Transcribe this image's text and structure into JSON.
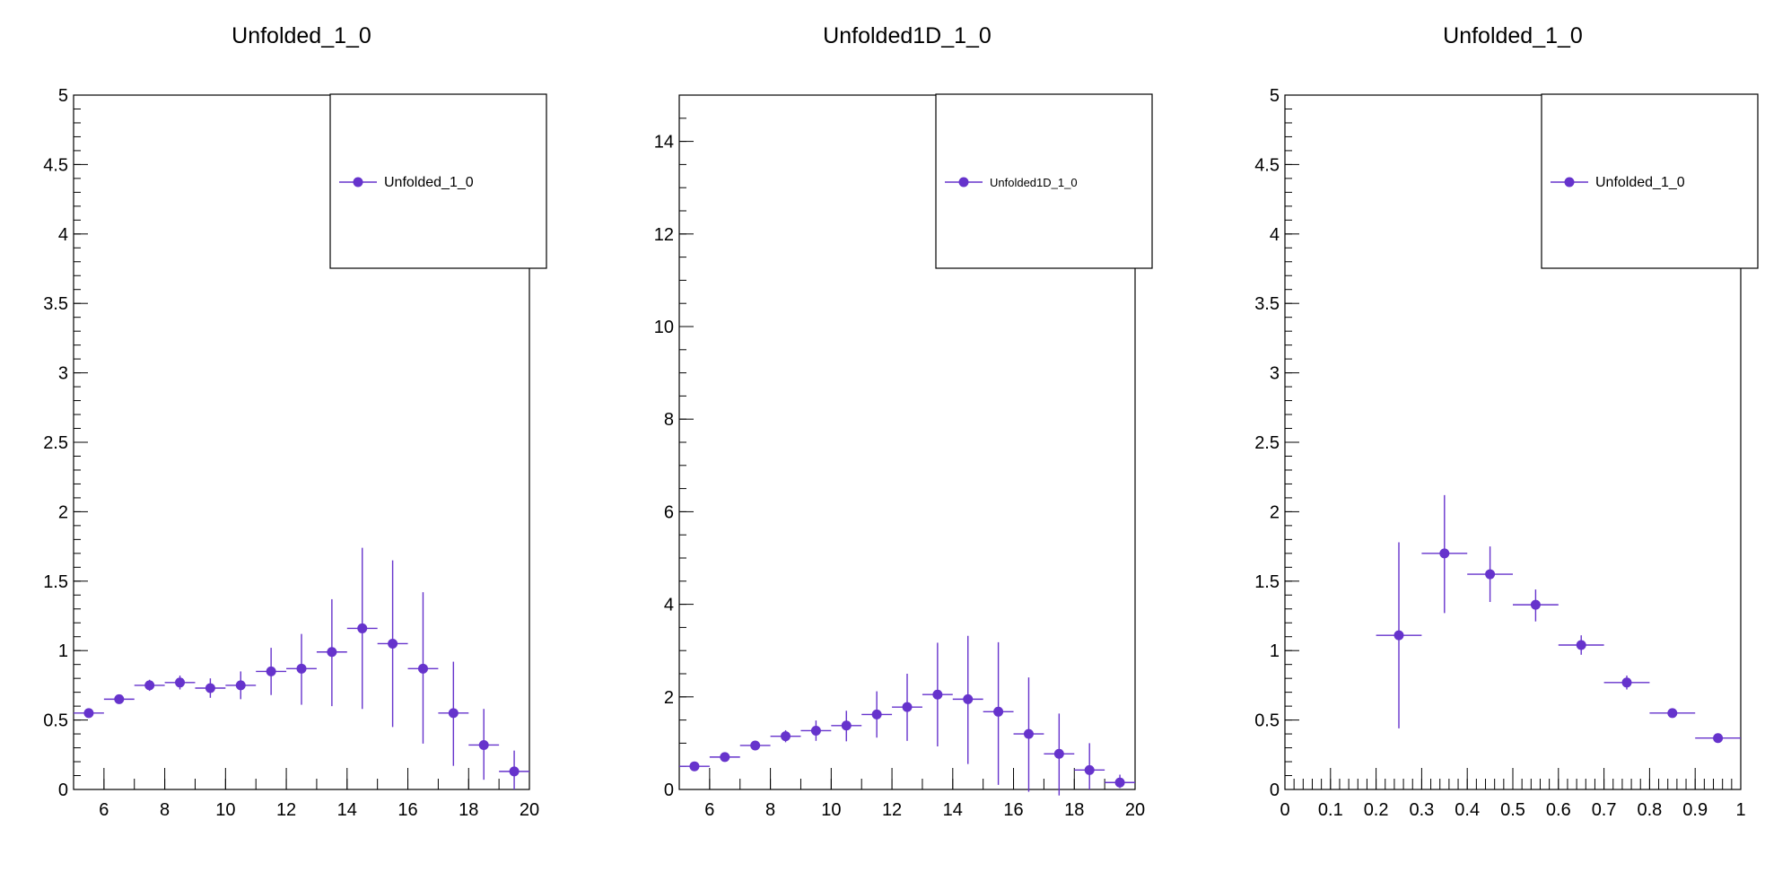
{
  "theme": {
    "marker_color": "#6633cc",
    "frame_color": "#000000",
    "background": "#ffffff"
  },
  "chart_data": [
    {
      "type": "scatter",
      "title": "Unfolded_1_0",
      "xlabel": "",
      "ylabel": "",
      "xlim": [
        5,
        20
      ],
      "ylim": [
        0,
        5
      ],
      "x_ticks": [
        6,
        8,
        10,
        12,
        14,
        16,
        18,
        20
      ],
      "y_ticks": [
        0,
        0.5,
        1,
        1.5,
        2,
        2.5,
        3,
        3.5,
        4,
        4.5,
        5
      ],
      "y_tick_labels": [
        "0",
        "0.5",
        "1",
        "1.5",
        "2",
        "2.5",
        "3",
        "3.5",
        "4",
        "4.5",
        "5"
      ],
      "x_minor_step": 1,
      "y_minor_step": 0.1,
      "grid": false,
      "legend_position": "top-right",
      "series": [
        {
          "name": "Unfolded_1_0",
          "x": [
            5.5,
            6.5,
            7.5,
            8.5,
            9.5,
            10.5,
            11.5,
            12.5,
            13.5,
            14.5,
            15.5,
            16.5,
            17.5,
            18.5,
            19.5
          ],
          "y": [
            0.55,
            0.65,
            0.75,
            0.77,
            0.73,
            0.75,
            0.85,
            0.87,
            0.99,
            1.16,
            1.05,
            0.87,
            0.55,
            0.32,
            0.13
          ],
          "x_err": [
            0.5,
            0.5,
            0.5,
            0.5,
            0.5,
            0.5,
            0.5,
            0.5,
            0.5,
            0.5,
            0.5,
            0.5,
            0.5,
            0.5,
            0.5
          ],
          "y_err_low": [
            0.02,
            0.02,
            0.04,
            0.05,
            0.07,
            0.1,
            0.17,
            0.26,
            0.39,
            0.58,
            0.6,
            0.54,
            0.38,
            0.25,
            0.13
          ],
          "y_err_high": [
            0.02,
            0.02,
            0.04,
            0.05,
            0.07,
            0.1,
            0.17,
            0.25,
            0.38,
            0.58,
            0.6,
            0.55,
            0.37,
            0.26,
            0.15
          ]
        }
      ]
    },
    {
      "type": "scatter",
      "title": "Unfolded1D_1_0",
      "xlabel": "",
      "ylabel": "",
      "xlim": [
        5,
        20
      ],
      "ylim": [
        0,
        15
      ],
      "x_ticks": [
        6,
        8,
        10,
        12,
        14,
        16,
        18,
        20
      ],
      "y_ticks": [
        0,
        2,
        4,
        6,
        8,
        10,
        12,
        14
      ],
      "y_tick_labels": [
        "0",
        "2",
        "4",
        "6",
        "8",
        "10",
        "12",
        "14"
      ],
      "x_minor_step": 1,
      "y_minor_step": 0.5,
      "grid": false,
      "legend_position": "top-right",
      "series": [
        {
          "name": "Unfolded1D_1_0",
          "x": [
            5.5,
            6.5,
            7.5,
            8.5,
            9.5,
            10.5,
            11.5,
            12.5,
            13.5,
            14.5,
            15.5,
            16.5,
            17.5,
            18.5,
            19.5
          ],
          "y": [
            0.5,
            0.7,
            0.95,
            1.15,
            1.27,
            1.38,
            1.62,
            1.78,
            2.05,
            1.95,
            1.68,
            1.2,
            0.77,
            0.42,
            0.15
          ],
          "x_err": [
            0.5,
            0.5,
            0.5,
            0.5,
            0.5,
            0.5,
            0.5,
            0.5,
            0.5,
            0.5,
            0.5,
            0.5,
            0.5,
            0.5,
            0.5
          ],
          "y_err_low": [
            0.04,
            0.05,
            0.07,
            0.13,
            0.22,
            0.34,
            0.5,
            0.73,
            1.12,
            1.4,
            1.58,
            1.25,
            0.9,
            0.42,
            0.12
          ],
          "y_err_high": [
            0.04,
            0.05,
            0.07,
            0.13,
            0.22,
            0.32,
            0.5,
            0.72,
            1.12,
            1.37,
            1.5,
            1.22,
            0.87,
            0.58,
            0.17
          ]
        }
      ]
    },
    {
      "type": "scatter",
      "title": "Unfolded_1_0",
      "xlabel": "",
      "ylabel": "",
      "xlim": [
        0,
        1
      ],
      "ylim": [
        0,
        5
      ],
      "x_ticks": [
        0,
        0.1,
        0.2,
        0.3,
        0.4,
        0.5,
        0.6,
        0.7,
        0.8,
        0.9,
        1
      ],
      "x_tick_labels": [
        "0",
        "0.1",
        "0.2",
        "0.3",
        "0.4",
        "0.5",
        "0.6",
        "0.7",
        "0.8",
        "0.9",
        "1"
      ],
      "y_ticks": [
        0,
        0.5,
        1,
        1.5,
        2,
        2.5,
        3,
        3.5,
        4,
        4.5,
        5
      ],
      "y_tick_labels": [
        "0",
        "0.5",
        "1",
        "1.5",
        "2",
        "2.5",
        "3",
        "3.5",
        "4",
        "4.5",
        "5"
      ],
      "x_minor_step": 0.02,
      "y_minor_step": 0.1,
      "grid": false,
      "legend_position": "top-right",
      "series": [
        {
          "name": "Unfolded_1_0",
          "x": [
            0.25,
            0.35,
            0.45,
            0.55,
            0.65,
            0.75,
            0.85,
            0.95
          ],
          "y": [
            1.11,
            1.7,
            1.55,
            1.33,
            1.04,
            0.77,
            0.55,
            0.37
          ],
          "x_err": [
            0.05,
            0.05,
            0.05,
            0.05,
            0.05,
            0.05,
            0.05,
            0.05
          ],
          "y_err_low": [
            0.67,
            0.43,
            0.2,
            0.12,
            0.07,
            0.05,
            0.02,
            0.01
          ],
          "y_err_high": [
            0.67,
            0.42,
            0.2,
            0.11,
            0.07,
            0.05,
            0.02,
            0.01
          ]
        }
      ]
    }
  ]
}
